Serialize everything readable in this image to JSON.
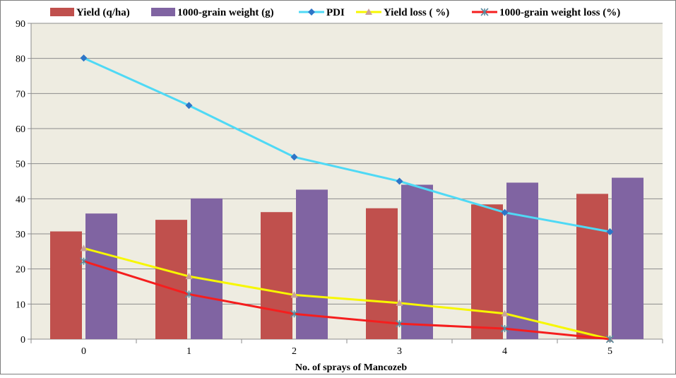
{
  "chart_data": {
    "type": "bar",
    "xlabel": "No. of sprays of Mancozeb",
    "ylabel": "",
    "categories": [
      "0",
      "1",
      "2",
      "3",
      "4",
      "5"
    ],
    "ylim": [
      0,
      90
    ],
    "yticks": [
      0,
      10,
      20,
      30,
      40,
      50,
      60,
      70,
      80,
      90
    ],
    "grid": true,
    "legend": "top",
    "plot_background": "#EEECE1",
    "series": [
      {
        "name": "Yield (q/ha)",
        "kind": "bar",
        "color": "#C0504D",
        "values": [
          30.7,
          34.0,
          36.2,
          37.3,
          38.4,
          41.4
        ]
      },
      {
        "name": "1000-grain weight (g)",
        "kind": "bar",
        "color": "#8064A2",
        "values": [
          35.8,
          40.1,
          42.6,
          44.0,
          44.6,
          46.0
        ]
      },
      {
        "name": "PDI",
        "kind": "line",
        "color": "#4FD9F5",
        "marker": "diamond",
        "marker_color": "#2E75C7",
        "values": [
          80.1,
          66.6,
          51.9,
          45.0,
          36.1,
          30.6
        ]
      },
      {
        "name": "Yield loss ( %)",
        "kind": "line",
        "color": "#F7F700",
        "marker": "triangle",
        "marker_color": "#C9A29B",
        "values": [
          25.9,
          17.9,
          12.6,
          10.3,
          7.3,
          0
        ]
      },
      {
        "name": "1000-grain weight loss (%)",
        "kind": "line",
        "color": "#F51E1E",
        "marker": "star",
        "marker_color": "#5B8A9E",
        "values": [
          22.2,
          12.8,
          7.2,
          4.4,
          3.0,
          0
        ]
      }
    ]
  }
}
